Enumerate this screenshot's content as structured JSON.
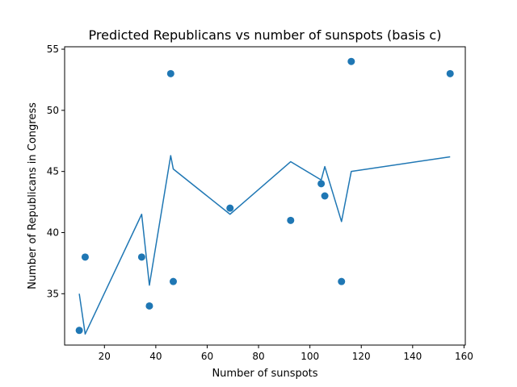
{
  "chart_data": {
    "type": "scatter",
    "title": "Predicted Republicans vs number of sunspots (basis c)",
    "xlabel": "Number of sunspots",
    "ylabel": "Number of Republicans in Congress",
    "xlim": [
      4.5,
      160.5
    ],
    "ylim": [
      30.8,
      55.2
    ],
    "xticks": [
      20,
      40,
      60,
      80,
      100,
      120,
      140,
      160
    ],
    "yticks": [
      35,
      40,
      45,
      50,
      55
    ],
    "grid": false,
    "legend": "none",
    "colors": {
      "series": "#1f77b4",
      "axes": "#000000",
      "background": "#ffffff"
    },
    "series": [
      {
        "kind": "scatter",
        "points": [
          {
            "x": 10.2,
            "y": 32
          },
          {
            "x": 12.5,
            "y": 38
          },
          {
            "x": 34.5,
            "y": 38
          },
          {
            "x": 37.5,
            "y": 34
          },
          {
            "x": 45.8,
            "y": 53
          },
          {
            "x": 46.8,
            "y": 36
          },
          {
            "x": 68.9,
            "y": 42
          },
          {
            "x": 92.5,
            "y": 41
          },
          {
            "x": 104.4,
            "y": 44
          },
          {
            "x": 105.8,
            "y": 43
          },
          {
            "x": 112.3,
            "y": 36
          },
          {
            "x": 116.1,
            "y": 54
          },
          {
            "x": 154.6,
            "y": 53
          }
        ]
      },
      {
        "kind": "line",
        "points": [
          {
            "x": 10.2,
            "y": 35.0
          },
          {
            "x": 12.5,
            "y": 31.7
          },
          {
            "x": 34.5,
            "y": 41.5
          },
          {
            "x": 37.5,
            "y": 35.7
          },
          {
            "x": 45.8,
            "y": 46.3
          },
          {
            "x": 46.8,
            "y": 45.2
          },
          {
            "x": 68.9,
            "y": 41.5
          },
          {
            "x": 92.5,
            "y": 45.8
          },
          {
            "x": 104.4,
            "y": 44.3
          },
          {
            "x": 105.8,
            "y": 45.4
          },
          {
            "x": 112.3,
            "y": 40.9
          },
          {
            "x": 116.1,
            "y": 45.0
          },
          {
            "x": 154.6,
            "y": 46.2
          }
        ]
      }
    ]
  }
}
